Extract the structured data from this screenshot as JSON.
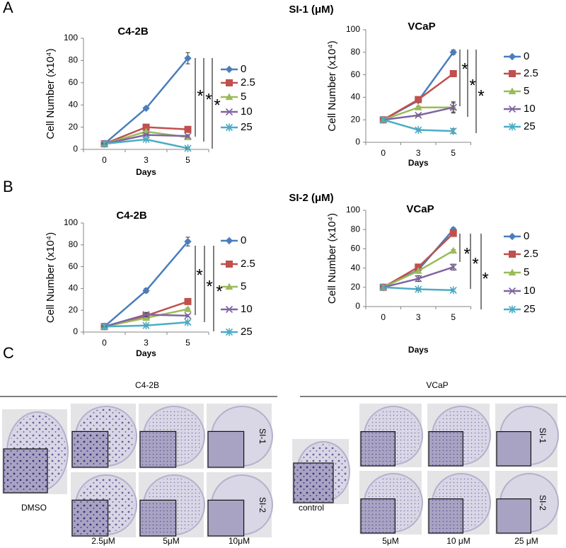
{
  "panels": [
    "A",
    "B",
    "C"
  ],
  "group_titles": [
    "SI-1 (μM)",
    "SI-2 (μM)"
  ],
  "chart_data": [
    {
      "type": "line",
      "title": "C4-2B",
      "x_label": "Days",
      "y_label": "Cell Number (x10⁴)",
      "categories": [
        "0",
        "3",
        "5"
      ],
      "ylim": [
        0,
        100
      ],
      "yticks": [
        0,
        20,
        40,
        60,
        80,
        100
      ],
      "annotations": [
        "*",
        "*",
        "*"
      ],
      "series": [
        {
          "name": "0",
          "color": "#4a7ebb",
          "marker": "diamond",
          "values": [
            5,
            37,
            82
          ],
          "errors": [
            1,
            1.5,
            5
          ]
        },
        {
          "name": "2.5",
          "color": "#c0504d",
          "marker": "square",
          "values": [
            5,
            20,
            18
          ],
          "errors": [
            0.5,
            1,
            1
          ]
        },
        {
          "name": "5",
          "color": "#9bbb59",
          "marker": "triangle",
          "values": [
            5,
            16,
            11
          ],
          "errors": [
            0.5,
            1,
            1
          ]
        },
        {
          "name": "10",
          "color": "#8064a2",
          "marker": "x",
          "values": [
            5,
            13,
            12
          ],
          "errors": [
            0.5,
            1,
            1
          ]
        },
        {
          "name": "25",
          "color": "#4bacc6",
          "marker": "star",
          "values": [
            5,
            9,
            1
          ],
          "errors": [
            0.5,
            1,
            0.5
          ]
        }
      ]
    },
    {
      "type": "line",
      "title": "VCaP",
      "x_label": "Days",
      "y_label": "Cell Number (x10⁴)",
      "categories": [
        "0",
        "3",
        "5"
      ],
      "ylim": [
        0,
        100
      ],
      "yticks": [
        0,
        20,
        40,
        60,
        80,
        100
      ],
      "annotations": [
        "*",
        "*",
        "*"
      ],
      "series": [
        {
          "name": "0",
          "color": "#4a7ebb",
          "marker": "diamond",
          "values": [
            20,
            37,
            80
          ],
          "errors": [
            1,
            1,
            2
          ]
        },
        {
          "name": "2.5",
          "color": "#c0504d",
          "marker": "square",
          "values": [
            20,
            38,
            61
          ],
          "errors": [
            1,
            1,
            1
          ]
        },
        {
          "name": "5",
          "color": "#9bbb59",
          "marker": "triangle",
          "values": [
            20,
            31,
            31
          ],
          "errors": [
            1,
            1,
            4
          ]
        },
        {
          "name": "10",
          "color": "#8064a2",
          "marker": "x",
          "values": [
            20,
            24,
            31
          ],
          "errors": [
            1,
            1,
            5
          ]
        },
        {
          "name": "25",
          "color": "#4bacc6",
          "marker": "star",
          "values": [
            20,
            11,
            10
          ],
          "errors": [
            1,
            1,
            2
          ]
        }
      ]
    },
    {
      "type": "line",
      "title": "C4-2B",
      "x_label": "Days",
      "y_label": "Cell Number (x10⁴)",
      "categories": [
        "0",
        "3",
        "5"
      ],
      "ylim": [
        0,
        100
      ],
      "yticks": [
        0,
        20,
        40,
        60,
        80,
        100
      ],
      "annotations": [
        "*",
        "*",
        "*"
      ],
      "series": [
        {
          "name": "0",
          "color": "#4a7ebb",
          "marker": "diamond",
          "values": [
            5,
            38,
            83
          ],
          "errors": [
            1,
            2,
            4
          ]
        },
        {
          "name": "2.5",
          "color": "#c0504d",
          "marker": "square",
          "values": [
            5,
            15,
            28
          ],
          "errors": [
            0.5,
            1,
            1
          ]
        },
        {
          "name": "5",
          "color": "#9bbb59",
          "marker": "triangle",
          "values": [
            5,
            13,
            21
          ],
          "errors": [
            0.5,
            1,
            1
          ]
        },
        {
          "name": "10",
          "color": "#8064a2",
          "marker": "x",
          "values": [
            5,
            16,
            15
          ],
          "errors": [
            0.5,
            2,
            1
          ]
        },
        {
          "name": "25",
          "color": "#4bacc6",
          "marker": "star",
          "values": [
            5,
            6,
            9
          ],
          "errors": [
            0.5,
            1,
            1
          ]
        }
      ]
    },
    {
      "type": "line",
      "title": "VCaP",
      "x_label": "Days",
      "y_label": "Cell Number (x10⁴)",
      "categories": [
        "0",
        "3",
        "5"
      ],
      "ylim": [
        0,
        100
      ],
      "yticks": [
        0,
        20,
        40,
        60,
        80,
        100
      ],
      "annotations": [
        "*",
        "*",
        "*"
      ],
      "series": [
        {
          "name": "0",
          "color": "#4a7ebb",
          "marker": "diamond",
          "values": [
            20,
            38,
            80
          ],
          "errors": [
            1,
            1,
            2
          ]
        },
        {
          "name": "2.5",
          "color": "#c0504d",
          "marker": "square",
          "values": [
            20,
            41,
            76
          ],
          "errors": [
            1,
            1,
            2
          ]
        },
        {
          "name": "5",
          "color": "#9bbb59",
          "marker": "triangle",
          "values": [
            20,
            37,
            58
          ],
          "errors": [
            1,
            1,
            1
          ]
        },
        {
          "name": "10",
          "color": "#8064a2",
          "marker": "x",
          "values": [
            20,
            29,
            41
          ],
          "errors": [
            1,
            3,
            3
          ]
        },
        {
          "name": "25",
          "color": "#4bacc6",
          "marker": "star",
          "values": [
            20,
            18,
            17
          ],
          "errors": [
            1,
            1,
            1
          ]
        }
      ]
    }
  ],
  "colony": [
    {
      "title": "C4-2B",
      "control": "DMSO",
      "rows": [
        "SI-1",
        "SI-2"
      ],
      "doses": [
        "2.5μM",
        "5μM",
        "10μM"
      ]
    },
    {
      "title": "VCaP",
      "control": "control",
      "rows": [
        "SI-1",
        "SI-2"
      ],
      "doses": [
        "5μM",
        "10 μM",
        "25 μM"
      ]
    }
  ]
}
